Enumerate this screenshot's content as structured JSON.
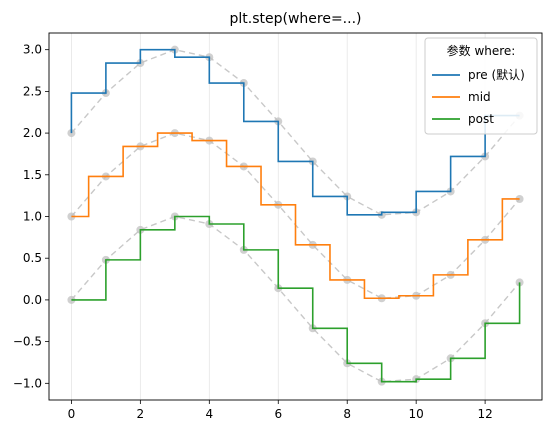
{
  "chart_data": {
    "type": "line",
    "title": "plt.step(where=...)",
    "xlabel": "",
    "ylabel": "",
    "xlim": [
      -0.65,
      13.65
    ],
    "ylim": [
      -1.2,
      3.2
    ],
    "xticks": [
      0,
      2,
      4,
      6,
      8,
      10,
      12
    ],
    "yticks": [
      -1.0,
      -0.5,
      0.0,
      0.5,
      1.0,
      1.5,
      2.0,
      2.5,
      3.0
    ],
    "ytick_labels": [
      "−1.0",
      "−0.5",
      "0.0",
      "0.5",
      "1.0",
      "1.5",
      "2.0",
      "2.5",
      "3.0"
    ],
    "grid": {
      "x": true,
      "y": false
    },
    "legend": {
      "title": "参数 where:",
      "placement": "top-right"
    },
    "x": [
      0,
      1,
      2,
      3,
      4,
      5,
      6,
      7,
      8,
      9,
      10,
      11,
      12,
      13
    ],
    "series": [
      {
        "name": "pre (默认)",
        "where": "pre",
        "color": "#1f77b4",
        "offset": 2,
        "values": [
          2.0,
          2.48,
          2.84,
          3.0,
          2.91,
          2.6,
          2.14,
          1.66,
          1.24,
          1.02,
          1.05,
          1.3,
          1.72,
          2.21
        ]
      },
      {
        "name": "mid",
        "where": "mid",
        "color": "#ff7f0e",
        "offset": 1,
        "values": [
          1.0,
          1.48,
          1.84,
          2.0,
          1.91,
          1.6,
          1.14,
          0.66,
          0.24,
          0.02,
          0.05,
          0.3,
          0.72,
          1.21
        ]
      },
      {
        "name": "post",
        "where": "post",
        "color": "#2ca02c",
        "offset": 0,
        "values": [
          0.0,
          0.48,
          0.84,
          1.0,
          0.91,
          0.6,
          0.14,
          -0.34,
          -0.76,
          -0.98,
          -0.95,
          -0.7,
          -0.28,
          0.21
        ]
      }
    ],
    "reference": {
      "color": "#c8c8c8",
      "marker_color": "#c0c0c0"
    }
  }
}
